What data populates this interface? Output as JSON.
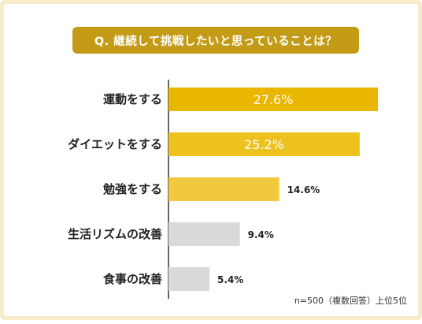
{
  "chart_data": {
    "type": "bar",
    "orientation": "horizontal",
    "title": "Q. 継続して挑戦したいと思っていることは？",
    "categories": [
      "運動をする",
      "ダイエットをする",
      "勉強をする",
      "生活リズムの改善",
      "食事の改善"
    ],
    "values": [
      27.6,
      25.2,
      14.6,
      9.4,
      5.4
    ],
    "value_labels": [
      "27.6%",
      "25.2%",
      "14.6%",
      "9.4%",
      "5.4%"
    ],
    "unit": "%",
    "xlim": [
      0,
      30
    ],
    "grid": false,
    "legend": "none",
    "bar_colors": [
      "#e9b600",
      "#edc11e",
      "#f0c93e",
      "#d9d9d9",
      "#d9d9d9"
    ],
    "note": "n=500（複数回答）上位5位"
  },
  "colors": {
    "title_bg": "#c39b16",
    "frame_border": "#f6ecc9",
    "axis_line": "#333333"
  }
}
